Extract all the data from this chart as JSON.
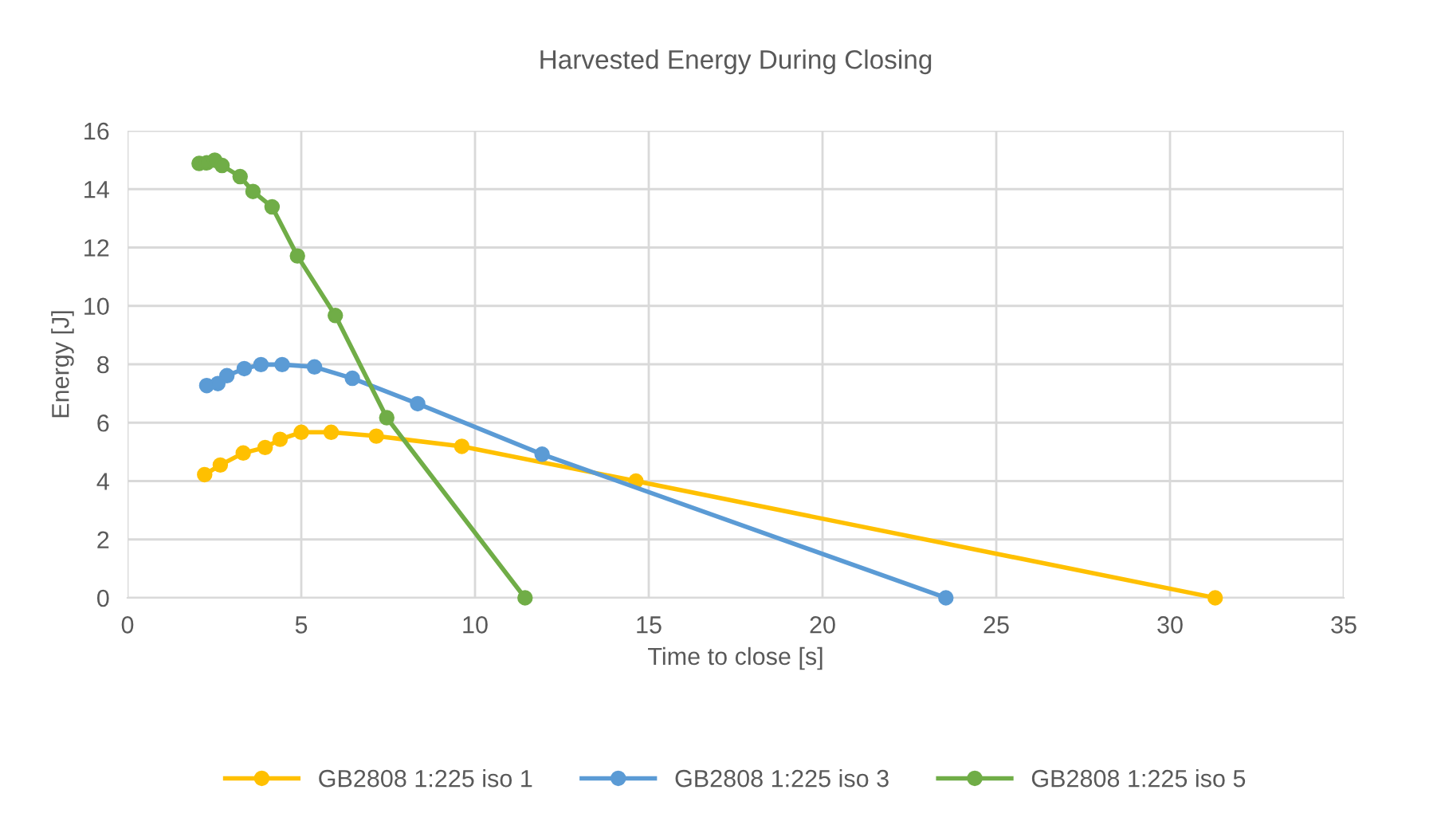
{
  "chart_data": {
    "type": "line",
    "title": "Harvested Energy During Closing",
    "xlabel": "Time to close [s]",
    "ylabel": "Energy [J]",
    "xlim": [
      0,
      35
    ],
    "xticks": [
      0,
      5,
      10,
      15,
      20,
      25,
      30,
      35
    ],
    "ylim": [
      0,
      16
    ],
    "yticks": [
      0,
      2,
      4,
      6,
      8,
      10,
      12,
      14,
      16
    ],
    "grid": true,
    "legend": "bottom",
    "marker": "circle",
    "line_style": "solid",
    "series": [
      {
        "name": "GB2808 1:225 iso 1",
        "color": "#ffc000",
        "x": [
          2.22,
          2.67,
          3.33,
          3.96,
          4.39,
          5.0,
          5.86,
          7.16,
          9.62,
          14.63,
          31.3
        ],
        "values": [
          4.22,
          4.55,
          4.96,
          5.15,
          5.43,
          5.67,
          5.67,
          5.54,
          5.19,
          4.0,
          0
        ]
      },
      {
        "name": "GB2808 1:225 iso 3",
        "color": "#5b9bd5",
        "x": [
          2.28,
          2.6,
          2.86,
          3.36,
          3.84,
          4.45,
          5.38,
          6.47,
          8.35,
          11.93,
          23.55
        ],
        "values": [
          7.27,
          7.34,
          7.61,
          7.85,
          7.99,
          7.99,
          7.91,
          7.52,
          6.65,
          4.92,
          0
        ]
      },
      {
        "name": "GB2808 1:225 iso 5",
        "color": "#70ad47",
        "x": [
          2.06,
          2.28,
          2.51,
          2.72,
          3.24,
          3.61,
          4.16,
          4.89,
          5.98,
          7.46,
          11.44
        ],
        "values": [
          14.88,
          14.9,
          14.99,
          14.81,
          14.43,
          13.92,
          13.39,
          11.71,
          9.67,
          6.17,
          0
        ]
      }
    ]
  }
}
